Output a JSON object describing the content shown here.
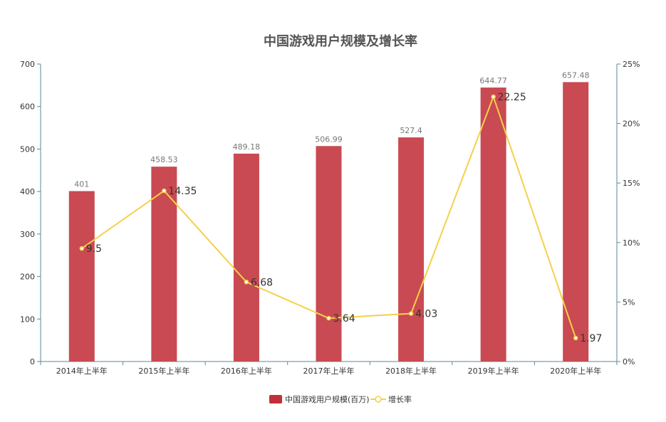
{
  "chart_data": {
    "type": "bar",
    "title": "中国游戏用户规模及增长率",
    "categories": [
      "2014年上半年",
      "2015年上半年",
      "2016年上半年",
      "2017年上半年",
      "2018年上半年",
      "2019年上半年",
      "2020年上半年"
    ],
    "series": [
      {
        "name": "中国游戏用户规模(百万)",
        "type": "bar",
        "axis": "left",
        "values": [
          401,
          458.53,
          489.18,
          506.99,
          527.4,
          644.77,
          657.48
        ],
        "color": "#c94a52"
      },
      {
        "name": "增长率",
        "type": "line",
        "axis": "right",
        "values": [
          9.5,
          14.35,
          6.68,
          3.64,
          4.03,
          22.25,
          1.97
        ],
        "color": "#f5d04a"
      }
    ],
    "ylim_left": [
      0,
      700
    ],
    "yticks_left": [
      0,
      100,
      200,
      300,
      400,
      500,
      600,
      700
    ],
    "ylim_right": [
      0,
      25
    ],
    "yticks_right": [
      "0%",
      "5%",
      "10%",
      "15%",
      "20%",
      "25%"
    ],
    "legend_position": "bottom-center",
    "grid": false,
    "axis_color": "#5b8a94"
  }
}
